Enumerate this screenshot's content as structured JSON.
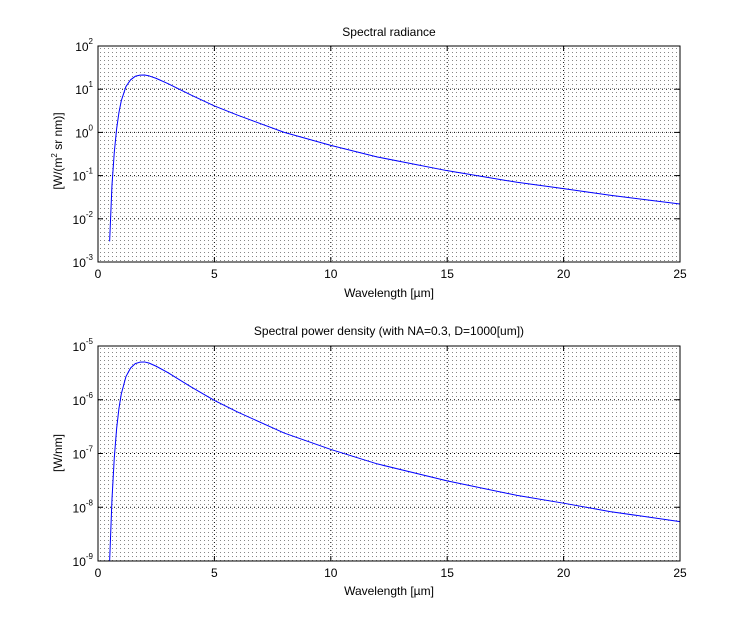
{
  "chart_data": [
    {
      "type": "line",
      "title": "Spectral radiance",
      "xlabel": "Wavelength [µm]",
      "ylabel": "[W/(m² sr nm)]",
      "ylabel_parts": {
        "pre": "[W/(m",
        "sup": "2",
        "post": " sr nm)]"
      },
      "yscale": "log",
      "xlim": [
        0,
        25
      ],
      "ylim": [
        0.001,
        100
      ],
      "x_ticks": [
        0,
        5,
        10,
        15,
        20,
        25
      ],
      "x_tick_labels": [
        "0",
        "5",
        "10",
        "15",
        "20",
        "25"
      ],
      "y_ticks": [
        0.001,
        0.01,
        0.1,
        1,
        10,
        100
      ],
      "y_tick_labels": [
        {
          "base": "10",
          "exp": "-3"
        },
        {
          "base": "10",
          "exp": "-2"
        },
        {
          "base": "10",
          "exp": "-1"
        },
        {
          "base": "10",
          "exp": "0"
        },
        {
          "base": "10",
          "exp": "1"
        },
        {
          "base": "10",
          "exp": "2"
        }
      ],
      "grid": true,
      "line_color": "#0000ff",
      "series": [
        {
          "x": [
            0.5,
            0.6,
            0.7,
            0.8,
            0.9,
            1.0,
            1.2,
            1.4,
            1.6,
            1.8,
            2.0,
            2.2,
            2.5,
            3,
            4,
            5,
            6,
            8,
            10,
            12,
            15,
            18,
            20,
            22,
            25
          ],
          "values": [
            0.003,
            0.06,
            0.35,
            1.2,
            2.9,
            5.4,
            11.5,
            16.5,
            19.9,
            21.2,
            21.3,
            20.3,
            17.8,
            13.5,
            7.3,
            4.1,
            2.5,
            1.0,
            0.5,
            0.27,
            0.13,
            0.07,
            0.05,
            0.035,
            0.022
          ]
        }
      ]
    },
    {
      "type": "line",
      "title": "Spectral power density (with NA=0.3, D=1000[um])",
      "xlabel": "Wavelength [µm]",
      "ylabel": "[W/nm]",
      "yscale": "log",
      "xlim": [
        0,
        25
      ],
      "ylim": [
        1e-09,
        1e-05
      ],
      "x_ticks": [
        0,
        5,
        10,
        15,
        20,
        25
      ],
      "x_tick_labels": [
        "0",
        "5",
        "10",
        "15",
        "20",
        "25"
      ],
      "y_ticks": [
        1e-09,
        1e-08,
        1e-07,
        1e-06,
        1e-05
      ],
      "y_tick_labels": [
        {
          "base": "10",
          "exp": "-9"
        },
        {
          "base": "10",
          "exp": "-8"
        },
        {
          "base": "10",
          "exp": "-7"
        },
        {
          "base": "10",
          "exp": "-6"
        },
        {
          "base": "10",
          "exp": "-5"
        }
      ],
      "grid": true,
      "line_color": "#0000ff",
      "series": [
        {
          "x": [
            0.5,
            0.6,
            0.7,
            0.8,
            0.9,
            1.0,
            1.2,
            1.4,
            1.6,
            1.8,
            2.0,
            2.2,
            2.5,
            3,
            4,
            5,
            6,
            8,
            10,
            12,
            15,
            18,
            20,
            22,
            25
          ],
          "values": [
            7e-10,
            1.4e-08,
            8.4e-08,
            2.9e-07,
            6.9e-07,
            1.28e-06,
            2.7e-06,
            3.9e-06,
            4.7e-06,
            5e-06,
            5.05e-06,
            4.8e-06,
            4.2e-06,
            3.2e-06,
            1.73e-06,
            9.7e-07,
            5.9e-07,
            2.4e-07,
            1.19e-07,
            6.4e-08,
            3.1e-08,
            1.66e-08,
            1.19e-08,
            8.3e-09,
            5.4e-09
          ]
        }
      ]
    }
  ]
}
